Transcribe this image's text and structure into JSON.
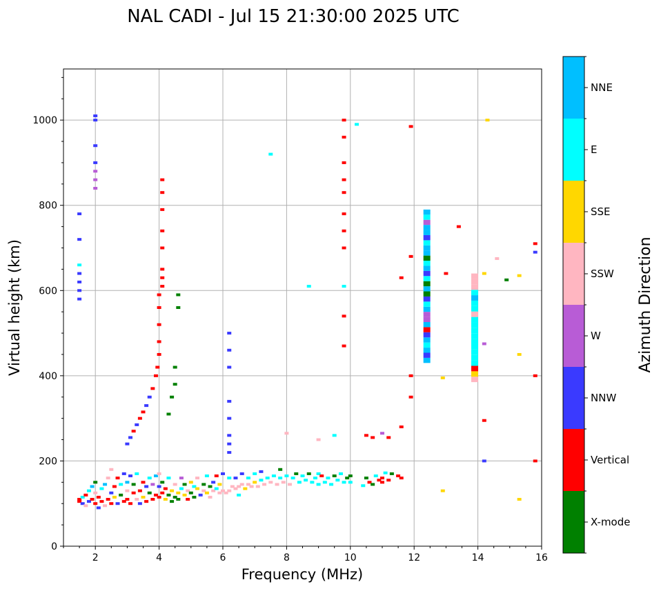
{
  "chart_data": {
    "type": "scatter",
    "title": "NAL CADI - Jul 15 21:30:00 2025 UTC",
    "xlabel": "Frequency (MHz)",
    "ylabel": "Virtual height (km)",
    "xlim": [
      1,
      16
    ],
    "ylim": [
      0,
      1120
    ],
    "xticks": [
      2,
      4,
      6,
      8,
      10,
      12,
      14,
      16
    ],
    "xtick_labels": [
      "2",
      "4",
      "6",
      "8",
      "10",
      "12",
      "14",
      "16"
    ],
    "yticks": [
      0,
      200,
      400,
      600,
      800,
      1000
    ],
    "ytick_labels": [
      "0",
      "200",
      "400",
      "600",
      "800",
      "1000"
    ],
    "grid": true,
    "colorbar": {
      "title": "Azimuth Direction",
      "labels": [
        "X-mode",
        "Vertical",
        "NNW",
        "W",
        "SSW",
        "SSE",
        "E",
        "NNE"
      ],
      "colors": [
        "#008000",
        "#ff0000",
        "#3a3aff",
        "#b85cd6",
        "#ffb6c1",
        "#ffd700",
        "#00ffff",
        "#00bfff"
      ]
    },
    "points": [
      [
        1.5,
        110,
        1
      ],
      [
        1.5,
        105,
        1
      ],
      [
        1.6,
        100,
        2
      ],
      [
        1.6,
        115,
        6
      ],
      [
        1.7,
        95,
        4
      ],
      [
        1.7,
        120,
        1
      ],
      [
        1.8,
        130,
        6
      ],
      [
        1.8,
        105,
        2
      ],
      [
        1.9,
        140,
        7
      ],
      [
        1.9,
        110,
        1
      ],
      [
        2.0,
        100,
        1
      ],
      [
        2.0,
        125,
        4
      ],
      [
        2.0,
        150,
        0
      ],
      [
        2.1,
        90,
        2
      ],
      [
        2.1,
        115,
        1
      ],
      [
        2.2,
        135,
        6
      ],
      [
        2.2,
        105,
        1
      ],
      [
        2.3,
        95,
        4
      ],
      [
        2.3,
        145,
        7
      ],
      [
        2.4,
        110,
        1
      ],
      [
        2.4,
        160,
        4
      ],
      [
        2.5,
        100,
        1
      ],
      [
        2.5,
        125,
        2
      ],
      [
        2.5,
        180,
        4
      ],
      [
        2.6,
        140,
        1
      ],
      [
        2.6,
        115,
        5
      ],
      [
        2.7,
        100,
        2
      ],
      [
        2.7,
        160,
        1
      ],
      [
        2.8,
        120,
        0
      ],
      [
        2.8,
        145,
        6
      ],
      [
        2.9,
        105,
        1
      ],
      [
        2.9,
        170,
        2
      ],
      [
        3.0,
        110,
        1
      ],
      [
        3.0,
        130,
        4
      ],
      [
        3.0,
        150,
        7
      ],
      [
        3.1,
        100,
        1
      ],
      [
        3.1,
        165,
        2
      ],
      [
        3.2,
        125,
        1
      ],
      [
        3.2,
        145,
        0
      ],
      [
        3.3,
        110,
        4
      ],
      [
        3.3,
        170,
        6
      ],
      [
        3.4,
        130,
        1
      ],
      [
        3.4,
        100,
        2
      ],
      [
        3.5,
        150,
        1
      ],
      [
        3.5,
        115,
        5
      ],
      [
        3.6,
        140,
        2
      ],
      [
        3.6,
        105,
        1
      ],
      [
        3.7,
        160,
        6
      ],
      [
        3.7,
        125,
        0
      ],
      [
        3.8,
        110,
        1
      ],
      [
        3.8,
        145,
        3
      ],
      [
        3.9,
        120,
        1
      ],
      [
        3.9,
        165,
        7
      ],
      [
        4.0,
        115,
        1
      ],
      [
        4.0,
        140,
        2
      ],
      [
        4.0,
        170,
        4
      ],
      [
        4.1,
        125,
        1
      ],
      [
        4.1,
        150,
        0
      ],
      [
        4.2,
        110,
        5
      ],
      [
        4.2,
        135,
        1
      ],
      [
        4.3,
        120,
        0
      ],
      [
        4.3,
        160,
        6
      ],
      [
        4.4,
        130,
        5
      ],
      [
        4.4,
        105,
        0
      ],
      [
        4.5,
        115,
        0
      ],
      [
        4.5,
        145,
        4
      ],
      [
        4.6,
        125,
        5
      ],
      [
        4.6,
        110,
        0
      ],
      [
        4.7,
        135,
        6
      ],
      [
        4.7,
        160,
        3
      ],
      [
        4.8,
        120,
        5
      ],
      [
        4.8,
        145,
        0
      ],
      [
        4.9,
        130,
        4
      ],
      [
        4.9,
        110,
        1
      ],
      [
        5.0,
        125,
        0
      ],
      [
        5.0,
        150,
        5
      ],
      [
        5.1,
        115,
        0
      ],
      [
        5.1,
        140,
        6
      ],
      [
        5.2,
        135,
        5
      ],
      [
        5.2,
        160,
        4
      ],
      [
        5.3,
        120,
        2
      ],
      [
        5.4,
        145,
        0
      ],
      [
        5.4,
        130,
        4
      ],
      [
        5.5,
        125,
        5
      ],
      [
        5.5,
        165,
        6
      ],
      [
        5.6,
        140,
        0
      ],
      [
        5.6,
        115,
        4
      ],
      [
        5.7,
        150,
        2
      ],
      [
        5.7,
        130,
        4
      ],
      [
        5.8,
        135,
        6
      ],
      [
        5.8,
        165,
        1
      ],
      [
        5.9,
        125,
        4
      ],
      [
        5.9,
        145,
        5
      ],
      [
        6.0,
        130,
        4
      ],
      [
        6.0,
        170,
        2
      ],
      [
        6.1,
        125,
        4
      ],
      [
        6.2,
        130,
        4
      ],
      [
        6.2,
        160,
        6
      ],
      [
        6.3,
        140,
        4
      ],
      [
        6.4,
        135,
        4
      ],
      [
        6.4,
        160,
        2
      ],
      [
        6.5,
        140,
        4
      ],
      [
        6.5,
        120,
        6
      ],
      [
        6.6,
        145,
        4
      ],
      [
        6.6,
        170,
        2
      ],
      [
        6.7,
        135,
        5
      ],
      [
        6.8,
        145,
        4
      ],
      [
        6.8,
        160,
        6
      ],
      [
        6.9,
        140,
        4
      ],
      [
        7.0,
        150,
        5
      ],
      [
        7.0,
        170,
        6
      ],
      [
        7.1,
        140,
        4
      ],
      [
        7.2,
        155,
        6
      ],
      [
        7.2,
        175,
        2
      ],
      [
        7.3,
        145,
        4
      ],
      [
        7.4,
        160,
        6
      ],
      [
        7.5,
        150,
        4
      ],
      [
        7.6,
        165,
        6
      ],
      [
        7.7,
        145,
        4
      ],
      [
        7.8,
        160,
        6
      ],
      [
        7.8,
        180,
        0
      ],
      [
        7.9,
        150,
        4
      ],
      [
        8.0,
        165,
        6
      ],
      [
        8.1,
        145,
        4
      ],
      [
        8.2,
        160,
        6
      ],
      [
        8.3,
        170,
        0
      ],
      [
        8.4,
        150,
        6
      ],
      [
        8.5,
        165,
        6
      ],
      [
        8.6,
        155,
        6
      ],
      [
        8.7,
        170,
        0
      ],
      [
        8.8,
        150,
        6
      ],
      [
        8.9,
        160,
        6
      ],
      [
        9.0,
        145,
        6
      ],
      [
        9.0,
        170,
        6
      ],
      [
        9.1,
        165,
        1
      ],
      [
        9.2,
        150,
        6
      ],
      [
        9.3,
        160,
        6
      ],
      [
        9.4,
        145,
        6
      ],
      [
        9.5,
        165,
        0
      ],
      [
        9.6,
        155,
        6
      ],
      [
        9.7,
        170,
        6
      ],
      [
        9.8,
        150,
        6
      ],
      [
        9.9,
        160,
        0
      ],
      [
        10.0,
        150,
        6
      ],
      [
        10.0,
        165,
        0
      ],
      [
        10.5,
        160,
        0
      ],
      [
        10.6,
        150,
        1
      ],
      [
        10.8,
        165,
        6
      ],
      [
        11.0,
        160,
        1
      ],
      [
        11.2,
        155,
        1
      ],
      [
        11.3,
        170,
        0
      ],
      [
        11.5,
        165,
        1
      ],
      [
        11.6,
        160,
        1
      ],
      [
        11.0,
        150,
        1
      ],
      [
        11.1,
        172,
        6
      ],
      [
        10.7,
        145,
        0
      ],
      [
        10.4,
        142,
        6
      ],
      [
        10.9,
        155,
        1
      ],
      [
        1.5,
        580,
        2
      ],
      [
        1.5,
        600,
        2
      ],
      [
        1.5,
        620,
        2
      ],
      [
        1.5,
        640,
        2
      ],
      [
        1.5,
        660,
        6
      ],
      [
        1.5,
        720,
        2
      ],
      [
        1.5,
        780,
        2
      ],
      [
        2.0,
        840,
        3
      ],
      [
        2.0,
        860,
        3
      ],
      [
        2.0,
        880,
        3
      ],
      [
        2.0,
        900,
        2
      ],
      [
        2.0,
        940,
        2
      ],
      [
        2.0,
        1000,
        2
      ],
      [
        2.0,
        1010,
        2
      ],
      [
        3.0,
        240,
        2
      ],
      [
        3.1,
        255,
        2
      ],
      [
        3.2,
        270,
        1
      ],
      [
        3.3,
        285,
        2
      ],
      [
        3.4,
        300,
        1
      ],
      [
        3.5,
        315,
        1
      ],
      [
        3.6,
        330,
        2
      ],
      [
        3.7,
        350,
        2
      ],
      [
        3.8,
        370,
        1
      ],
      [
        3.9,
        400,
        1
      ],
      [
        3.95,
        420,
        1
      ],
      [
        4.0,
        450,
        1
      ],
      [
        4.0,
        480,
        1
      ],
      [
        4.0,
        520,
        1
      ],
      [
        4.0,
        560,
        1
      ],
      [
        4.0,
        590,
        1
      ],
      [
        4.1,
        610,
        1
      ],
      [
        4.1,
        630,
        1
      ],
      [
        4.1,
        650,
        1
      ],
      [
        4.1,
        700,
        1
      ],
      [
        4.1,
        740,
        1
      ],
      [
        4.1,
        790,
        1
      ],
      [
        4.1,
        830,
        1
      ],
      [
        4.1,
        860,
        1
      ],
      [
        4.5,
        380,
        0
      ],
      [
        4.5,
        420,
        0
      ],
      [
        4.6,
        560,
        0
      ],
      [
        4.6,
        590,
        0
      ],
      [
        4.4,
        350,
        0
      ],
      [
        4.3,
        310,
        0
      ],
      [
        6.2,
        220,
        2
      ],
      [
        6.2,
        240,
        2
      ],
      [
        6.2,
        260,
        2
      ],
      [
        6.2,
        300,
        2
      ],
      [
        6.2,
        340,
        2
      ],
      [
        6.2,
        420,
        2
      ],
      [
        6.2,
        460,
        2
      ],
      [
        6.2,
        500,
        2
      ],
      [
        9.8,
        470,
        1
      ],
      [
        9.8,
        540,
        1
      ],
      [
        9.8,
        610,
        6
      ],
      [
        9.8,
        700,
        1
      ],
      [
        9.8,
        740,
        1
      ],
      [
        9.8,
        780,
        1
      ],
      [
        9.8,
        830,
        1
      ],
      [
        9.8,
        860,
        1
      ],
      [
        9.8,
        900,
        1
      ],
      [
        9.8,
        960,
        1
      ],
      [
        9.8,
        1000,
        1
      ],
      [
        10.2,
        990,
        6
      ],
      [
        11.9,
        985,
        1
      ],
      [
        11.9,
        680,
        1
      ],
      [
        11.9,
        400,
        1
      ],
      [
        11.9,
        350,
        1
      ],
      [
        11.6,
        630,
        1
      ],
      [
        11.6,
        280,
        1
      ],
      [
        13.4,
        750,
        1
      ],
      [
        13.0,
        640,
        1
      ],
      [
        12.9,
        395,
        5
      ],
      [
        12.9,
        130,
        5
      ],
      [
        14.6,
        675,
        4
      ],
      [
        14.2,
        640,
        5
      ],
      [
        14.2,
        475,
        3
      ],
      [
        14.2,
        295,
        1
      ],
      [
        14.2,
        200,
        2
      ],
      [
        14.3,
        1000,
        5
      ],
      [
        15.3,
        635,
        5
      ],
      [
        15.3,
        450,
        5
      ],
      [
        15.3,
        110,
        5
      ],
      [
        15.8,
        710,
        1
      ],
      [
        15.8,
        690,
        2
      ],
      [
        15.8,
        400,
        1
      ],
      [
        15.8,
        200,
        1
      ],
      [
        14.9,
        625,
        0
      ],
      [
        7.5,
        920,
        6
      ],
      [
        8.7,
        610,
        6
      ],
      [
        10.5,
        260,
        1
      ],
      [
        10.7,
        255,
        1
      ],
      [
        11.0,
        265,
        3
      ],
      [
        11.2,
        255,
        1
      ],
      [
        9.5,
        260,
        6
      ],
      [
        9.0,
        250,
        4
      ],
      [
        8.0,
        265,
        4
      ]
    ],
    "columns": [
      {
        "f": 12.4,
        "from": 430,
        "to": 790,
        "colors": [
          7,
          2,
          7,
          6,
          7,
          2,
          1,
          7,
          3,
          3,
          7,
          6,
          2,
          0,
          7,
          0,
          6,
          2,
          7,
          6,
          0,
          7,
          7,
          6,
          2,
          7,
          7,
          3,
          6,
          7
        ]
      },
      {
        "f": 13.9,
        "from": 385,
        "to": 640,
        "colors": [
          4,
          5,
          1,
          6,
          6,
          6,
          6,
          6,
          6,
          6,
          6,
          6,
          4,
          6,
          6,
          7,
          6,
          4,
          4,
          4
        ]
      }
    ]
  }
}
